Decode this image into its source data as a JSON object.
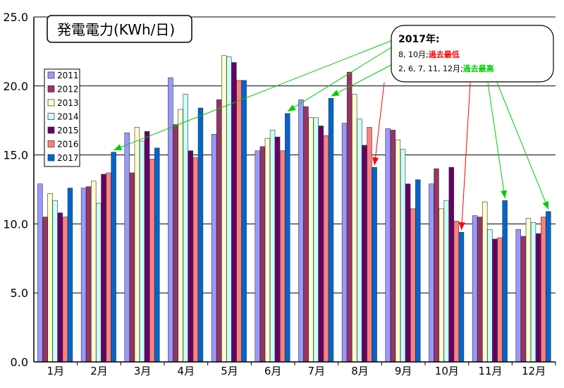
{
  "chart_data": {
    "type": "bar",
    "title": "発電電力(KWh/日)",
    "categories": [
      "1月",
      "2月",
      "3月",
      "4月",
      "5月",
      "6月",
      "7月",
      "8月",
      "9月",
      "10月",
      "11月",
      "12月"
    ],
    "yticks": [
      "0.0",
      "5.0",
      "10.0",
      "15.0",
      "20.0",
      "25.0"
    ],
    "ylim": [
      0,
      25
    ],
    "grid": true,
    "legend_position": "left",
    "series": [
      {
        "name": "2011",
        "color": "#9999ff",
        "values": [
          12.9,
          12.6,
          16.6,
          20.6,
          16.5,
          15.3,
          19.0,
          17.3,
          16.9,
          12.9,
          10.6,
          9.6
        ]
      },
      {
        "name": "2012",
        "color": "#993366",
        "values": [
          10.5,
          12.7,
          13.7,
          17.2,
          19.0,
          15.6,
          18.5,
          21.0,
          16.8,
          14.0,
          10.5,
          9.1
        ]
      },
      {
        "name": "2013",
        "color": "#ffffcc",
        "values": [
          12.2,
          13.1,
          17.0,
          18.3,
          22.2,
          16.2,
          17.7,
          19.4,
          16.1,
          11.1,
          11.6,
          10.4
        ]
      },
      {
        "name": "2014",
        "color": "#ccffff",
        "values": [
          11.7,
          11.5,
          16.0,
          19.4,
          22.1,
          16.8,
          17.7,
          17.6,
          15.4,
          11.7,
          9.6,
          10.1
        ]
      },
      {
        "name": "2015",
        "color": "#660066",
        "values": [
          10.8,
          13.6,
          16.7,
          15.3,
          21.7,
          16.3,
          17.1,
          15.7,
          12.9,
          14.1,
          8.9,
          9.3
        ]
      },
      {
        "name": "2016",
        "color": "#ff8080",
        "values": [
          10.5,
          13.7,
          14.7,
          14.8,
          20.4,
          15.3,
          16.4,
          17.0,
          11.1,
          10.2,
          9.0,
          10.5
        ]
      },
      {
        "name": "2017",
        "color": "#0066cc",
        "values": [
          12.6,
          15.2,
          15.5,
          18.4,
          20.4,
          18.0,
          19.1,
          14.1,
          13.2,
          9.4,
          11.7,
          10.9
        ]
      }
    ],
    "annotation": {
      "title": "2017年:",
      "line1_prefix": "8, 10月;",
      "line1_highlight": "過去最低",
      "line1_color": "#ff0000",
      "line2_prefix": "2, 6, 7, 11, 12月;",
      "line2_highlight": "過去最高",
      "line2_color": "#00cc00"
    }
  }
}
